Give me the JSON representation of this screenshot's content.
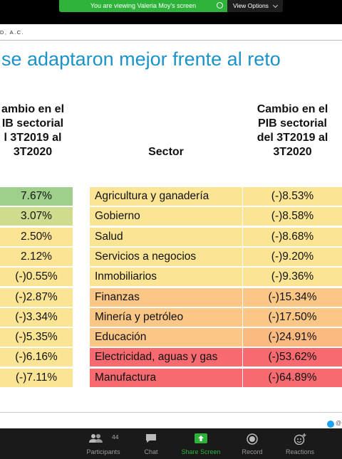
{
  "banner": {
    "text": "You are viewing Valeria Moy's screen",
    "view_options": "View Options"
  },
  "slide": {
    "org": "D, A.C.",
    "title": "se adaptaron mejor frente al reto",
    "left_header": "ambio en el\nIB sectorial\nl 3T2019 al\n3T2020",
    "mid_header": "Sector",
    "right_header": "Cambio en el\nPIB sectorial\ndel 3T2019 al\n3T2020",
    "left_values": [
      "7.67%",
      "3.07%",
      "2.50%",
      "2.12%",
      "(-)0.55%",
      "(-)2.87%",
      "(-)3.34%",
      "(-)5.35%",
      "(-)6.16%",
      "(-)7.11%"
    ],
    "sectors": [
      {
        "name": "Agricultura y ganadería",
        "value": "(-)8.53%"
      },
      {
        "name": "Gobierno",
        "value": "(-)8.58%"
      },
      {
        "name": "Salud",
        "value": "(-)8.68%"
      },
      {
        "name": "Servicios a negocios",
        "value": "(-)9.20%"
      },
      {
        "name": "Inmobiliarios",
        "value": "(-)9.36%"
      },
      {
        "name": "Finanzas",
        "value": "(-)15.34%"
      },
      {
        "name": "Minería y petróleo",
        "value": "(-)17.50%"
      },
      {
        "name": "Educación",
        "value": "(-)24.91%"
      },
      {
        "name": "Electricidad, aguas y gas",
        "value": "(-)53.62%"
      },
      {
        "name": "Manufactura",
        "value": "(-)64.89%"
      }
    ],
    "footer_handle": "@"
  },
  "colors": {
    "left": [
      "#9fd08b",
      "#cfdc8d",
      "#fbe594",
      "#fbe594",
      "#fbe594",
      "#fbe594",
      "#fbe594",
      "#fbe594",
      "#fbe594",
      "#fbe594"
    ],
    "mid": [
      "#fbe594",
      "#fbe594",
      "#fbe594",
      "#fbe594",
      "#fbe594",
      "#fbc786",
      "#fbc786",
      "#fbc786",
      "#f76b70",
      "#f76b70"
    ],
    "right": [
      "#fbe594",
      "#fbe594",
      "#fbe594",
      "#fbe594",
      "#fbe594",
      "#fbc786",
      "#fbc786",
      "#fbba80",
      "#f76b70",
      "#f76b70"
    ]
  },
  "toolbar": {
    "participants_count": "44",
    "participants": "Participants",
    "chat": "Chat",
    "share": "Share Screen",
    "record": "Record",
    "reactions": "Reactions"
  }
}
